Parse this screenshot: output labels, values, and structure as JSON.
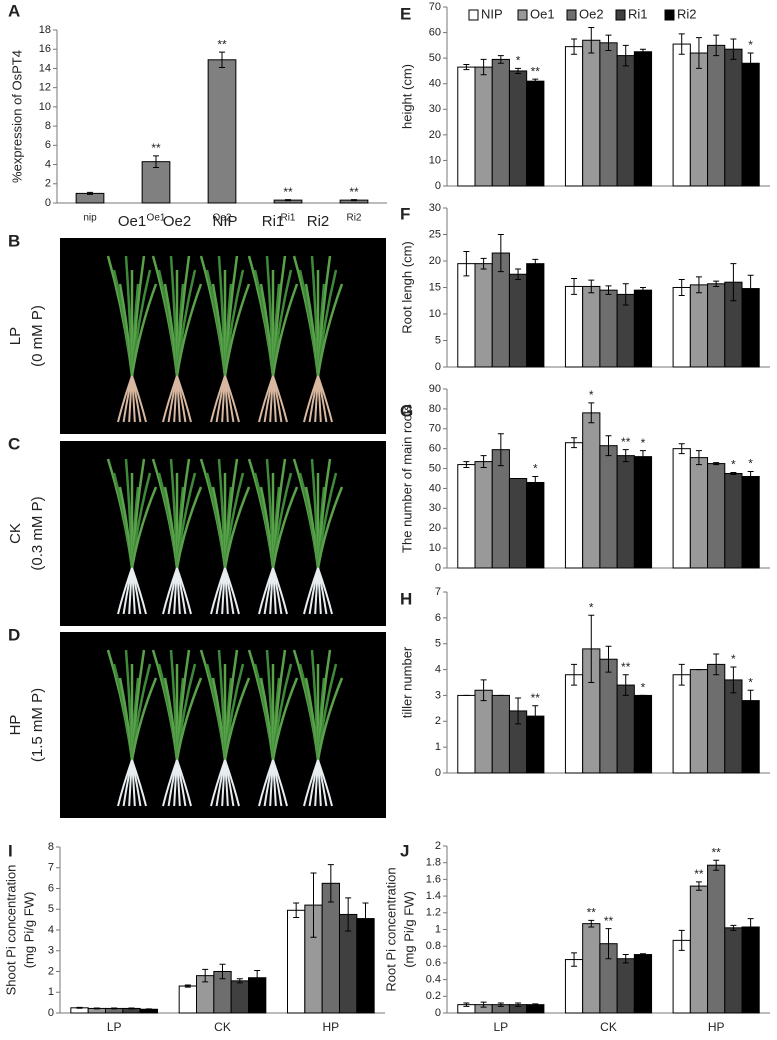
{
  "chart_data": [
    {
      "type": "bar",
      "label": "A",
      "ylabel": [
        "%expression of OsPT4"
      ],
      "categories": [
        "nip",
        "Oe1",
        "Oe2",
        "Ri1",
        "Ri2"
      ],
      "values": [
        1,
        4.3,
        14.9,
        0.3,
        0.3
      ],
      "errors": [
        0.1,
        0.6,
        0.8,
        0.05,
        0.05
      ],
      "annotations": [
        null,
        "**",
        "**",
        "**",
        "**"
      ],
      "color": "#808080",
      "ylim": [
        0,
        18
      ],
      "yticks": [
        0,
        2,
        4,
        6,
        8,
        10,
        12,
        14,
        16,
        18
      ]
    },
    {
      "type": "grouped_bar",
      "label": "E",
      "ylabel": [
        "height (cm)"
      ],
      "categories": [
        null,
        null,
        null
      ],
      "legend": "top-left",
      "series": [
        {
          "name": "NIP",
          "color": "#ffffff",
          "values": [
            46.5,
            54.5,
            55.5
          ],
          "errors": [
            1,
            3,
            4
          ],
          "annotations": [
            null,
            null,
            null
          ]
        },
        {
          "name": "Oe1",
          "color": "#999999",
          "values": [
            46.5,
            57,
            52
          ],
          "errors": [
            3,
            5,
            6
          ],
          "annotations": [
            null,
            null,
            null
          ]
        },
        {
          "name": "Oe2",
          "color": "#6e6e6e",
          "values": [
            49.5,
            56,
            55
          ],
          "errors": [
            1.5,
            3,
            4
          ],
          "annotations": [
            null,
            null,
            null
          ]
        },
        {
          "name": "Ri1",
          "color": "#404040",
          "values": [
            45,
            51,
            53.5
          ],
          "errors": [
            1,
            4,
            4
          ],
          "annotations": [
            "*",
            null,
            null
          ]
        },
        {
          "name": "Ri2",
          "color": "#000000",
          "values": [
            41,
            52.5,
            48
          ],
          "errors": [
            0.8,
            1,
            4
          ],
          "annotations": [
            "**",
            null,
            "*"
          ]
        }
      ],
      "ylim": [
        0,
        70
      ],
      "yticks": [
        0,
        10,
        20,
        30,
        40,
        50,
        60,
        70
      ]
    },
    {
      "type": "grouped_bar",
      "label": "F",
      "ylabel": [
        "Root lengh (cm)"
      ],
      "categories": [
        null,
        null,
        null
      ],
      "series": [
        {
          "color": "#ffffff",
          "values": [
            19.5,
            15.2,
            15
          ],
          "errors": [
            2.3,
            1.5,
            1.5
          ],
          "annotations": [
            null,
            null,
            null
          ]
        },
        {
          "color": "#999999",
          "values": [
            19.5,
            15.2,
            15.5
          ],
          "errors": [
            1,
            1.2,
            1.5
          ],
          "annotations": [
            null,
            null,
            null
          ]
        },
        {
          "color": "#6e6e6e",
          "values": [
            21.5,
            14.5,
            15.7
          ],
          "errors": [
            3.5,
            0.8,
            0.5
          ],
          "annotations": [
            null,
            null,
            null
          ]
        },
        {
          "color": "#404040",
          "values": [
            17.5,
            13.7,
            16
          ],
          "errors": [
            1,
            2,
            3.5
          ],
          "annotations": [
            null,
            null,
            null
          ]
        },
        {
          "color": "#000000",
          "values": [
            19.5,
            14.5,
            14.8
          ],
          "errors": [
            0.8,
            0.5,
            2.5
          ],
          "annotations": [
            null,
            null,
            null
          ]
        }
      ],
      "ylim": [
        0,
        30
      ],
      "yticks": [
        0,
        5,
        10,
        15,
        20,
        25,
        30
      ]
    },
    {
      "type": "grouped_bar",
      "label": "G",
      "ylabel": [
        "The number of main roots"
      ],
      "categories": [
        null,
        null,
        null
      ],
      "series": [
        {
          "color": "#ffffff",
          "values": [
            52,
            63,
            60
          ],
          "errors": [
            1.5,
            2.5,
            2.5
          ],
          "annotations": [
            null,
            null,
            null
          ]
        },
        {
          "color": "#999999",
          "values": [
            53.5,
            78,
            55.5
          ],
          "errors": [
            3,
            5,
            3.5
          ],
          "annotations": [
            null,
            "*",
            null
          ]
        },
        {
          "color": "#6e6e6e",
          "values": [
            59.5,
            61.5,
            52.5
          ],
          "errors": [
            8,
            5,
            0.5
          ],
          "annotations": [
            null,
            null,
            null
          ]
        },
        {
          "color": "#404040",
          "values": [
            45,
            56.5,
            47.5
          ],
          "errors": [
            0,
            3,
            0.5
          ],
          "annotations": [
            null,
            "**",
            "*"
          ]
        },
        {
          "color": "#000000",
          "values": [
            43,
            56,
            46
          ],
          "errors": [
            3,
            3,
            2.5
          ],
          "annotations": [
            "*",
            "*",
            "*"
          ]
        }
      ],
      "ylim": [
        0,
        90
      ],
      "yticks": [
        0,
        10,
        20,
        30,
        40,
        50,
        60,
        70,
        80,
        90
      ]
    },
    {
      "type": "grouped_bar",
      "label": "H",
      "ylabel": [
        "tiller number"
      ],
      "categories": [
        null,
        null,
        null
      ],
      "series": [
        {
          "color": "#ffffff",
          "values": [
            3,
            3.8,
            3.8
          ],
          "errors": [
            0,
            0.4,
            0.4
          ],
          "annotations": [
            null,
            null,
            null
          ]
        },
        {
          "color": "#999999",
          "values": [
            3.2,
            4.8,
            4
          ],
          "errors": [
            0.4,
            1.3,
            0
          ],
          "annotations": [
            null,
            "*",
            null
          ]
        },
        {
          "color": "#6e6e6e",
          "values": [
            3,
            4.4,
            4.2
          ],
          "errors": [
            0,
            0.5,
            0.4
          ],
          "annotations": [
            null,
            null,
            null
          ]
        },
        {
          "color": "#404040",
          "values": [
            2.4,
            3.4,
            3.6
          ],
          "errors": [
            0.5,
            0.4,
            0.5
          ],
          "annotations": [
            null,
            "**",
            "*"
          ]
        },
        {
          "color": "#000000",
          "values": [
            2.2,
            3,
            2.8
          ],
          "errors": [
            0.4,
            0,
            0.4
          ],
          "annotations": [
            "**",
            "*",
            "*"
          ]
        }
      ],
      "ylim": [
        0,
        7
      ],
      "yticks": [
        0,
        1,
        2,
        3,
        4,
        5,
        6,
        7
      ]
    },
    {
      "type": "grouped_bar",
      "label": "I",
      "ylabel": [
        "Shoot  Pi concentration",
        "(mg Pi/g FW)"
      ],
      "categories": [
        "LP",
        "CK",
        "HP"
      ],
      "series": [
        {
          "color": "#ffffff",
          "values": [
            0.25,
            1.3,
            4.95
          ],
          "errors": [
            0.02,
            0.05,
            0.35
          ],
          "annotations": [
            null,
            null,
            null
          ]
        },
        {
          "color": "#999999",
          "values": [
            0.22,
            1.8,
            5.2
          ],
          "errors": [
            0.02,
            0.3,
            1.55
          ],
          "annotations": [
            null,
            null,
            null
          ]
        },
        {
          "color": "#6e6e6e",
          "values": [
            0.22,
            2,
            6.25
          ],
          "errors": [
            0.02,
            0.35,
            0.9
          ],
          "annotations": [
            null,
            null,
            null
          ]
        },
        {
          "color": "#404040",
          "values": [
            0.22,
            1.55,
            4.75
          ],
          "errors": [
            0.02,
            0.1,
            0.8
          ],
          "annotations": [
            null,
            null,
            null
          ]
        },
        {
          "color": "#000000",
          "values": [
            0.18,
            1.7,
            4.55
          ],
          "errors": [
            0.02,
            0.35,
            0.75
          ],
          "annotations": [
            null,
            null,
            null
          ]
        }
      ],
      "ylim": [
        0,
        8
      ],
      "yticks": [
        0,
        1,
        2,
        3,
        4,
        5,
        6,
        7,
        8
      ]
    },
    {
      "type": "grouped_bar",
      "label": "J",
      "ylabel": [
        "Root  Pi concentration",
        "(mg Pi/g FW)"
      ],
      "categories": [
        "LP",
        "CK",
        "HP"
      ],
      "series": [
        {
          "color": "#ffffff",
          "values": [
            0.1,
            0.64,
            0.87
          ],
          "errors": [
            0.02,
            0.08,
            0.12
          ],
          "annotations": [
            null,
            null,
            null
          ]
        },
        {
          "color": "#999999",
          "values": [
            0.1,
            1.07,
            1.52
          ],
          "errors": [
            0.03,
            0.04,
            0.05
          ],
          "annotations": [
            null,
            "**",
            "**"
          ]
        },
        {
          "color": "#6e6e6e",
          "values": [
            0.1,
            0.83,
            1.77
          ],
          "errors": [
            0.02,
            0.18,
            0.06
          ],
          "annotations": [
            null,
            "**",
            "**"
          ]
        },
        {
          "color": "#404040",
          "values": [
            0.1,
            0.65,
            1.02
          ],
          "errors": [
            0.02,
            0.05,
            0.03
          ],
          "annotations": [
            null,
            null,
            null
          ]
        },
        {
          "color": "#000000",
          "values": [
            0.1,
            0.7,
            1.03
          ],
          "errors": [
            0.01,
            0.01,
            0.1
          ],
          "annotations": [
            null,
            null,
            null
          ]
        }
      ],
      "ylim": [
        0,
        2
      ],
      "yticks": [
        0,
        0.2,
        0.4,
        0.6,
        0.8,
        1,
        1.2,
        1.4,
        1.6,
        1.8,
        2
      ]
    }
  ],
  "photos": {
    "column_labels": [
      "Oe1",
      "Oe2",
      "NIP",
      "Ri1",
      "Ri2"
    ],
    "rows": [
      {
        "label": "B",
        "condition": "LP",
        "dose": "(0 mM P)"
      },
      {
        "label": "C",
        "condition": "CK",
        "dose": "(0.3 mM P)"
      },
      {
        "label": "D",
        "condition": "HP",
        "dose": "(1.5 mM  P)"
      }
    ]
  }
}
